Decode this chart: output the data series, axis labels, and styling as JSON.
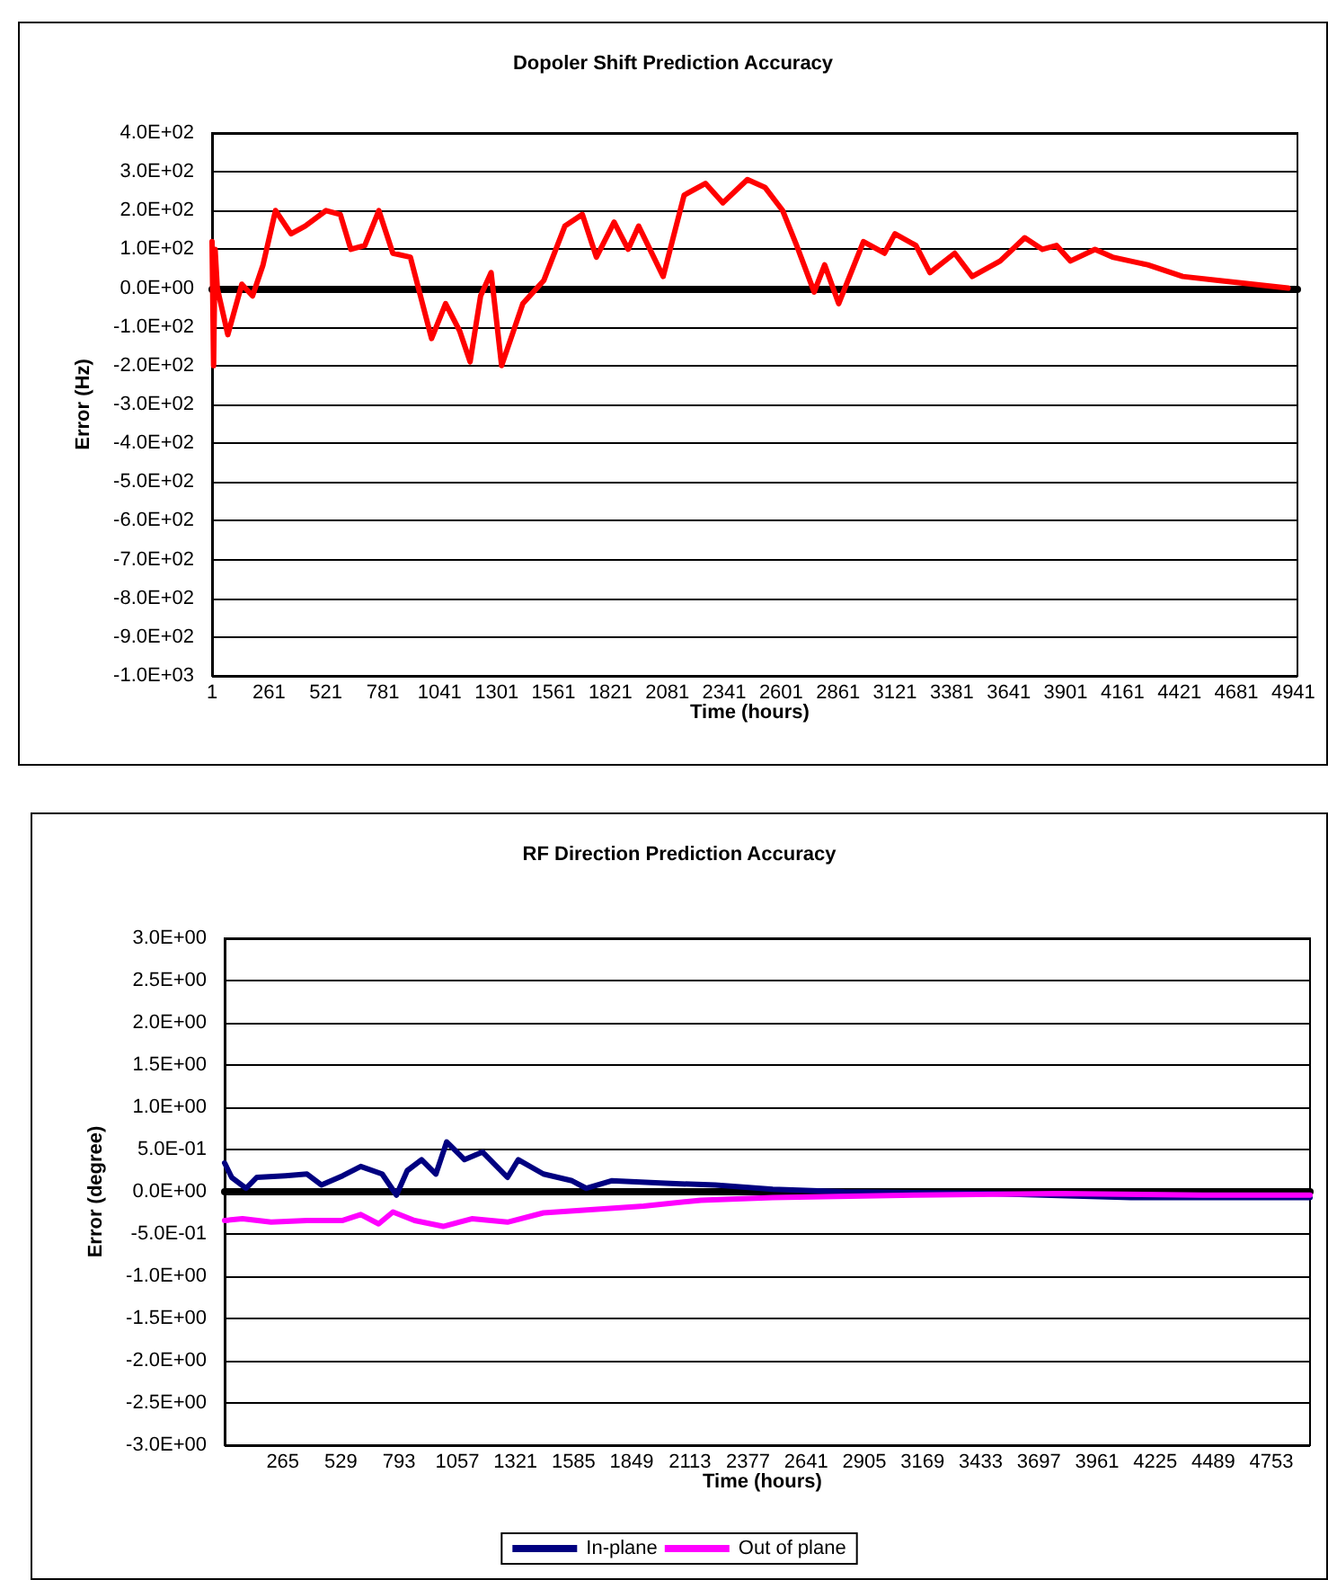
{
  "chart_data": [
    {
      "type": "line",
      "title": "Dopoler Shift Prediction Accuracy",
      "xlabel": "Time (hours)",
      "ylabel": "Error (Hz)",
      "xlim": [
        1,
        4960
      ],
      "xticks": [
        1,
        261,
        521,
        781,
        1041,
        1301,
        1561,
        1821,
        2081,
        2341,
        2601,
        2861,
        3121,
        3381,
        3641,
        3901,
        4161,
        4421,
        4681,
        4941
      ],
      "ylim": [
        -1000,
        400
      ],
      "yticks": [
        {
          "value": 400,
          "label": "4.0E+02"
        },
        {
          "value": 300,
          "label": "3.0E+02"
        },
        {
          "value": 200,
          "label": "2.0E+02"
        },
        {
          "value": 100,
          "label": "1.0E+02"
        },
        {
          "value": 0,
          "label": "0.0E+00"
        },
        {
          "value": -100,
          "label": "-1.0E+02"
        },
        {
          "value": -200,
          "label": "-2.0E+02"
        },
        {
          "value": -300,
          "label": "-3.0E+02"
        },
        {
          "value": -400,
          "label": "-4.0E+02"
        },
        {
          "value": -500,
          "label": "-5.0E+02"
        },
        {
          "value": -600,
          "label": "-6.0E+02"
        },
        {
          "value": -700,
          "label": "-7.0E+02"
        },
        {
          "value": -800,
          "label": "-8.0E+02"
        },
        {
          "value": -900,
          "label": "-9.0E+02"
        },
        {
          "value": -1000,
          "label": "-1.0E+03"
        }
      ],
      "grid": "y",
      "legend": false,
      "marker": "none",
      "line_style": "solid",
      "series": [
        {
          "color": "#ff0000",
          "x": [
            1,
            8,
            15,
            25,
            73,
            137,
            186,
            234,
            291,
            362,
            426,
            522,
            587,
            635,
            699,
            763,
            827,
            907,
            1004,
            1068,
            1132,
            1180,
            1228,
            1276,
            1324,
            1421,
            1517,
            1613,
            1693,
            1757,
            1838,
            1902,
            1950,
            2062,
            2158,
            2255,
            2335,
            2447,
            2527,
            2608,
            2672,
            2752,
            2800,
            2864,
            2977,
            3073,
            3121,
            3217,
            3281,
            3394,
            3474,
            3602,
            3714,
            3795,
            3859,
            3923,
            4035,
            4115,
            4276,
            4436,
            4597,
            4757,
            4917
          ],
          "values": [
            120,
            -200,
            100,
            0,
            -120,
            10,
            -20,
            60,
            200,
            140,
            160,
            200,
            190,
            100,
            110,
            200,
            90,
            80,
            -130,
            -40,
            -110,
            -190,
            -20,
            40,
            -200,
            -40,
            20,
            160,
            190,
            80,
            170,
            100,
            160,
            30,
            240,
            270,
            220,
            280,
            260,
            200,
            110,
            -10,
            60,
            -40,
            120,
            90,
            140,
            110,
            40,
            90,
            30,
            70,
            130,
            100,
            110,
            70,
            100,
            80,
            60,
            30,
            20,
            10,
            0
          ]
        }
      ]
    },
    {
      "type": "line",
      "title": "RF Direction Prediction Accuracy",
      "xlabel": "Time (hours)",
      "ylabel": "Error (degree)",
      "xlim": [
        1,
        4928
      ],
      "xticks": [
        265,
        529,
        793,
        1057,
        1321,
        1585,
        1849,
        2113,
        2377,
        2641,
        2905,
        3169,
        3433,
        3697,
        3961,
        4225,
        4489,
        4753
      ],
      "ylim": [
        -3,
        3
      ],
      "yticks": [
        {
          "value": 3,
          "label": "3.0E+00"
        },
        {
          "value": 2.5,
          "label": "2.5E+00"
        },
        {
          "value": 2,
          "label": "2.0E+00"
        },
        {
          "value": 1.5,
          "label": "1.5E+00"
        },
        {
          "value": 1,
          "label": "1.0E+00"
        },
        {
          "value": 0.5,
          "label": "5.0E-01"
        },
        {
          "value": 0,
          "label": "0.0E+00"
        },
        {
          "value": -0.5,
          "label": "-5.0E-01"
        },
        {
          "value": -1,
          "label": "-1.0E+00"
        },
        {
          "value": -1.5,
          "label": "-1.5E+00"
        },
        {
          "value": -2,
          "label": "-2.0E+00"
        },
        {
          "value": -2.5,
          "label": "-2.5E+00"
        },
        {
          "value": -3,
          "label": "-3.0E+00"
        }
      ],
      "grid": "y",
      "legend": "bottom",
      "marker": "none",
      "line_style": "solid",
      "series": [
        {
          "name": "In-plane",
          "color": "#000080",
          "x": [
            1,
            33,
            98,
            147,
            277,
            375,
            440,
            537,
            619,
            716,
            781,
            830,
            895,
            960,
            1009,
            1090,
            1172,
            1285,
            1334,
            1448,
            1578,
            1643,
            1757,
            2001,
            2228,
            2489,
            2814,
            3464,
            4115,
            4928
          ],
          "values": [
            0.34,
            0.17,
            0.04,
            0.17,
            0.19,
            0.21,
            0.08,
            0.19,
            0.3,
            0.21,
            -0.04,
            0.25,
            0.38,
            0.21,
            0.59,
            0.38,
            0.47,
            0.17,
            0.38,
            0.21,
            0.13,
            0.04,
            0.13,
            0.1,
            0.08,
            0.03,
            0,
            -0.02,
            -0.07,
            -0.07
          ]
        },
        {
          "name": "Out of plane",
          "color": "#ff00ff",
          "x": [
            1,
            82,
            212,
            375,
            537,
            619,
            700,
            765,
            863,
            993,
            1123,
            1285,
            1448,
            1676,
            1903,
            2163,
            2489,
            3139,
            3789,
            4440,
            4928
          ],
          "values": [
            -0.34,
            -0.32,
            -0.36,
            -0.34,
            -0.34,
            -0.27,
            -0.38,
            -0.24,
            -0.34,
            -0.41,
            -0.32,
            -0.36,
            -0.25,
            -0.21,
            -0.17,
            -0.1,
            -0.07,
            -0.04,
            -0.02,
            -0.04,
            -0.04
          ]
        }
      ]
    }
  ]
}
